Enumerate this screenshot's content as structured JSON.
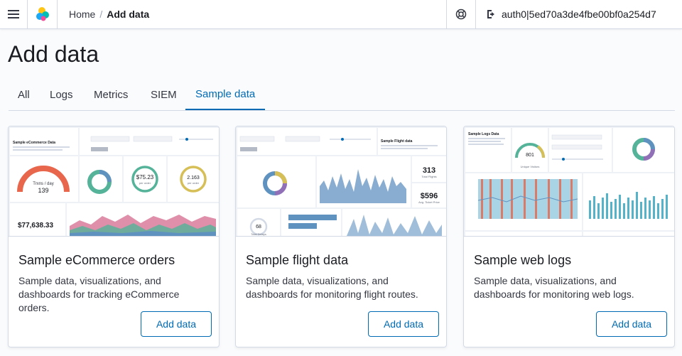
{
  "header": {
    "breadcrumbs": [
      "Home",
      "Add data"
    ],
    "breadcrumb_separator": "/",
    "user": "auth0|5ed70a3de4fbe00bf0a254d7"
  },
  "page": {
    "title": "Add data"
  },
  "tabs": [
    {
      "label": "All",
      "active": false
    },
    {
      "label": "Logs",
      "active": false
    },
    {
      "label": "Metrics",
      "active": false
    },
    {
      "label": "SIEM",
      "active": false
    },
    {
      "label": "Sample data",
      "active": true
    }
  ],
  "cards": [
    {
      "title": "Sample eCommerce orders",
      "description": "Sample data, visualizations, and dashboards for tracking eCommerce orders.",
      "button": "Add data",
      "preview": {
        "heading": "Sample eCommerce Data",
        "gauge_top": "Trxns / day",
        "gauge_value": "139",
        "metric1_value": "$75.23",
        "metric1_sub": "per order",
        "metric2_value": "2.163",
        "metric2_sub": "per order",
        "total": "$77,638.33"
      }
    },
    {
      "title": "Sample flight data",
      "description": "Sample data, visualizations, and dashboards for monitoring flight routes.",
      "button": "Add data",
      "preview": {
        "heading": "Sample Flight data",
        "metric1_value": "313",
        "metric1_sub": "Total Flights",
        "metric2_value": "$596",
        "metric2_sub": "Avg. Ticket Price",
        "delay_value": "68",
        "delay_sub": "Total Delays"
      }
    },
    {
      "title": "Sample web logs",
      "description": "Sample data, visualizations, and dashboards for monitoring web logs.",
      "button": "Add data",
      "preview": {
        "heading": "Sample Logs Data",
        "gauge_value": "801",
        "gauge_sub": "Unique Visitors"
      }
    }
  ],
  "colors": {
    "accent": "#006bb4",
    "border": "#d3dae6",
    "text": "#1a1c21"
  }
}
